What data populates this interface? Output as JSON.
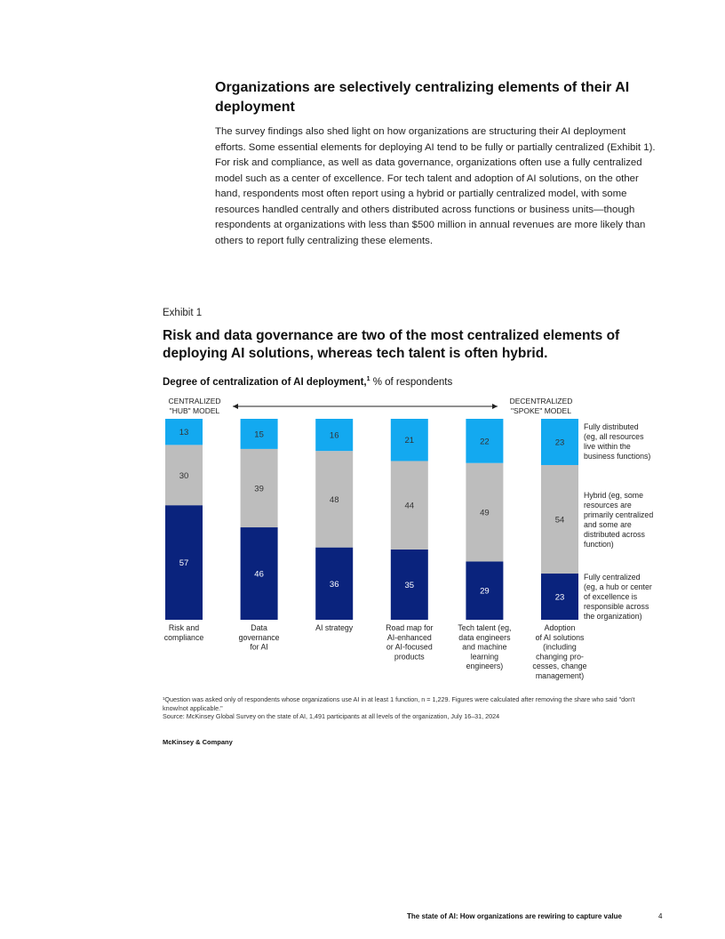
{
  "section": {
    "heading": "Organizations are selectively centralizing elements of their AI deployment",
    "body": "The survey findings also shed light on how organizations are structuring their AI deployment efforts. Some essential elements for deploying AI tend to be fully or partially centralized (Exhibit 1). For risk and compliance, as well as data governance, organizations often use a fully centralized model such as a center of excellence. For tech talent and adoption of AI solutions, on the other hand, respondents most often report using a hybrid or partially centralized model, with some resources handled centrally and others distributed across functions or business units—though respondents at organizations with less than $500 million in annual revenues are more likely than others to report fully centralizing these elements."
  },
  "exhibit": {
    "label": "Exhibit 1",
    "title": "Risk and data governance are two of the most centralized elements of deploying AI solutions, whereas tech talent is often hybrid.",
    "subtitle_bold": "Degree of centralization of AI deployment,",
    "subtitle_sup": "1",
    "subtitle_rest": " % of respondents",
    "scale_left": [
      "CENTRALIZED",
      "\"HUB\" MODEL"
    ],
    "scale_right": [
      "DECENTRALIZED",
      "\"SPOKE\" MODEL"
    ]
  },
  "chart_data": {
    "type": "bar",
    "stacked": true,
    "unit": "% of respondents",
    "categories": [
      [
        "Risk and",
        "compliance"
      ],
      [
        "Data",
        "governance",
        "for AI"
      ],
      [
        "AI strategy"
      ],
      [
        "Road map for",
        "AI-enhanced",
        "or AI-focused",
        "products"
      ],
      [
        "Tech talent (eg,",
        "data engineers",
        "and machine",
        "learning",
        "engineers)"
      ],
      [
        "Adoption",
        "of AI solutions",
        "(including",
        "changing pro-",
        "cesses, change",
        "management)"
      ]
    ],
    "series": [
      {
        "name": [
          "Fully centralized",
          "(eg, a hub or center",
          "of excellence is",
          "responsible across",
          "the organization)"
        ],
        "color": "#0a237d",
        "values": [
          57,
          46,
          36,
          35,
          29,
          23
        ]
      },
      {
        "name": [
          "Hybrid (eg, some",
          "resources are",
          "primarily centralized",
          "and some are",
          "distributed across",
          "function)"
        ],
        "color": "#bdbdbd",
        "values": [
          30,
          39,
          48,
          44,
          49,
          54
        ]
      },
      {
        "name": [
          "Fully distributed",
          "(eg, all resources",
          "live within the",
          "business functions)"
        ],
        "color": "#13a9f0",
        "values": [
          13,
          15,
          16,
          21,
          22,
          23
        ]
      }
    ],
    "ylim": [
      0,
      100
    ],
    "legend_position": "right"
  },
  "footnote": {
    "note": "¹Question was asked only of respondents whose organizations use AI in at least 1 function, n = 1,229. Figures were calculated after removing the share who said \"don't know/not applicable.\"",
    "source": "Source: McKinsey Global Survey on the state of AI, 1,491 participants at all levels of the organization, July 16–31, 2024"
  },
  "brand": "McKinsey & Company",
  "page_footer": "The state of AI: How organizations are rewiring to capture value",
  "page_number": "4"
}
